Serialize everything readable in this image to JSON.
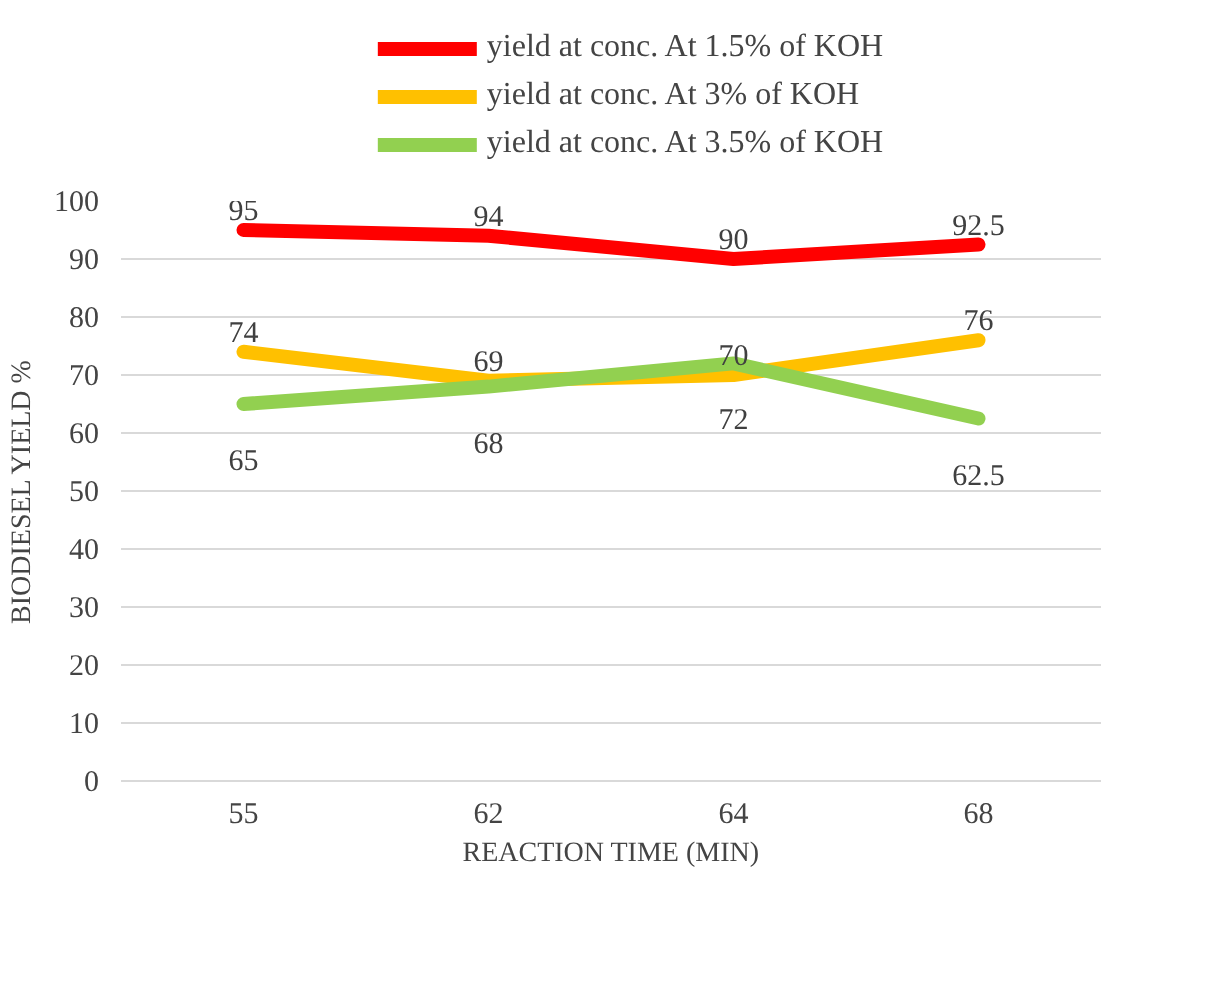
{
  "chart_data": {
    "type": "line",
    "xlabel": "REACTION TIME (MIN)",
    "ylabel": "BIODIESEL YIELD %",
    "categories": [
      "55",
      "62",
      "64",
      "68"
    ],
    "series": [
      {
        "name": "yield at conc. At 1.5% of KOH",
        "color": "#ff0000",
        "values": [
          95,
          94,
          90,
          92.5
        ]
      },
      {
        "name": "yield at conc. At 3% of KOH",
        "color": "#ffc000",
        "values": [
          74,
          69,
          70,
          76
        ]
      },
      {
        "name": "yield at conc. At 3.5% of KOH",
        "color": "#92d050",
        "values": [
          65,
          68,
          72,
          62.5
        ]
      }
    ],
    "ylim": [
      0,
      100
    ],
    "yticks": [
      0,
      10,
      20,
      30,
      40,
      50,
      60,
      70,
      80,
      90,
      100
    ],
    "grid": "y",
    "legend": "top",
    "data_labels": true,
    "marker": "none",
    "line_style": "solid"
  }
}
